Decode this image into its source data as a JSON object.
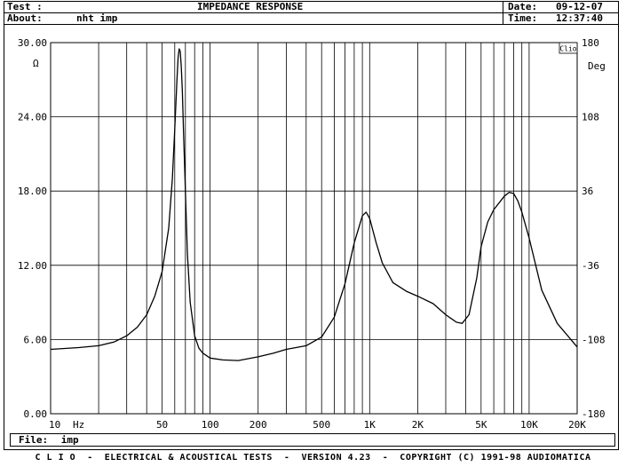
{
  "header": {
    "test_label": "Test :",
    "title": "IMPEDANCE RESPONSE",
    "about_label": "About:",
    "about_value": "nht imp",
    "date_label": "Date:",
    "date_value": "09-12-07",
    "time_label": "Time:",
    "time_value": "12:37:40"
  },
  "footer": {
    "file_label": "File:",
    "file_value": "imp",
    "copyright": "C L I O  -  ELECTRICAL & ACOUSTICAL TESTS  -  VERSION 4.23  -  COPYRIGHT (C) 1991-98 AUDIOMATICA"
  },
  "chart_data": {
    "type": "line",
    "title": "IMPEDANCE RESPONSE",
    "badge": "Clio",
    "xscale": "log",
    "xlim": [
      10,
      20000
    ],
    "ylim": [
      0,
      30
    ],
    "y2lim": [
      -180,
      180
    ],
    "xlabel": "Hz",
    "ylabel": "Ω",
    "y2label": "Deg",
    "x_ticks": [
      {
        "value": 10,
        "label": "10"
      },
      {
        "value": 50,
        "label": "50"
      },
      {
        "value": 100,
        "label": "100"
      },
      {
        "value": 200,
        "label": "200"
      },
      {
        "value": 500,
        "label": "500"
      },
      {
        "value": 1000,
        "label": "1K"
      },
      {
        "value": 2000,
        "label": "2K"
      },
      {
        "value": 5000,
        "label": "5K"
      },
      {
        "value": 10000,
        "label": "10K"
      },
      {
        "value": 20000,
        "label": "20K"
      }
    ],
    "y_ticks": [
      "0.00",
      "6.00",
      "12.00",
      "18.00",
      "24.00",
      "30.00"
    ],
    "y2_ticks": [
      "-180",
      "-108",
      "-36",
      "36",
      "108",
      "180"
    ],
    "grid": true,
    "series": [
      {
        "x": [
          10,
          15,
          20,
          25,
          30,
          35,
          40,
          45,
          50,
          55,
          58,
          60,
          62,
          63,
          64,
          65,
          66,
          67,
          68,
          70,
          72,
          75,
          80,
          85,
          90,
          100,
          120,
          150,
          200,
          250,
          300,
          400,
          500,
          600,
          700,
          800,
          900,
          950,
          1000,
          1100,
          1200,
          1400,
          1700,
          2000,
          2500,
          3000,
          3500,
          3800,
          4200,
          4700,
          5000,
          5500,
          6000,
          7000,
          7500,
          8000,
          8500,
          9000,
          10000,
          12000,
          15000,
          20000
        ],
        "y": [
          5.2,
          5.35,
          5.5,
          5.8,
          6.3,
          7.0,
          8.0,
          9.5,
          11.5,
          15.0,
          19.0,
          23.0,
          27.0,
          28.8,
          29.5,
          29.3,
          28.0,
          26.0,
          23.0,
          18.0,
          13.0,
          9.0,
          6.3,
          5.3,
          4.9,
          4.5,
          4.35,
          4.3,
          4.6,
          4.9,
          5.2,
          5.5,
          6.2,
          7.8,
          10.5,
          13.8,
          16.0,
          16.3,
          15.8,
          13.8,
          12.2,
          10.6,
          9.9,
          9.5,
          8.9,
          8.0,
          7.4,
          7.3,
          8.0,
          11.0,
          13.5,
          15.5,
          16.5,
          17.6,
          17.9,
          17.8,
          17.2,
          16.3,
          14.2,
          10.0,
          7.3,
          5.4
        ]
      }
    ]
  }
}
